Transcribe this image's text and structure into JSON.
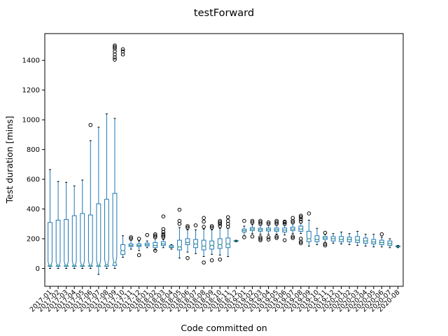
{
  "chart_data": {
    "type": "box",
    "title": "testForward",
    "xlabel": "Code committed on",
    "ylabel": "Test duration [mins]",
    "ylim": [
      -120,
      1580
    ],
    "yticks": [
      0,
      200,
      400,
      600,
      800,
      1000,
      1200,
      1400
    ],
    "grid": false,
    "notched": true,
    "colors": {
      "box": "#1f77b4",
      "median": "#2ca02c",
      "flier": "#000000",
      "axes": "#000000"
    },
    "boxes": [
      {
        "label": "2017-01",
        "whislo": 0,
        "q1": 15,
        "med": 22,
        "q3": 310,
        "whishi": 665,
        "fliers": []
      },
      {
        "label": "2017-02",
        "whislo": 0,
        "q1": 15,
        "med": 22,
        "q3": 325,
        "whishi": 585,
        "fliers": []
      },
      {
        "label": "2017-03",
        "whislo": 0,
        "q1": 15,
        "med": 22,
        "q3": 330,
        "whishi": 580,
        "fliers": []
      },
      {
        "label": "2017-04",
        "whislo": 0,
        "q1": 15,
        "med": 22,
        "q3": 355,
        "whishi": 555,
        "fliers": []
      },
      {
        "label": "2017-05",
        "whislo": 0,
        "q1": 15,
        "med": 22,
        "q3": 370,
        "whishi": 595,
        "fliers": []
      },
      {
        "label": "2017-06",
        "whislo": 0,
        "q1": 15,
        "med": 22,
        "q3": 360,
        "whishi": 860,
        "fliers": [
          965
        ]
      },
      {
        "label": "2017-07",
        "whislo": -40,
        "q1": 15,
        "med": 22,
        "q3": 435,
        "whishi": 950,
        "fliers": []
      },
      {
        "label": "2017-08",
        "whislo": 0,
        "q1": 15,
        "med": 25,
        "q3": 465,
        "whishi": 1040,
        "fliers": []
      },
      {
        "label": "2017-09",
        "whislo": 0,
        "q1": 20,
        "med": 40,
        "q3": 505,
        "whishi": 1010,
        "fliers": [
          1405,
          1420,
          1440,
          1460,
          1480,
          1490,
          1500
        ]
      },
      {
        "label": "2017-10",
        "whislo": 75,
        "q1": 95,
        "med": 120,
        "q3": 160,
        "whishi": 220,
        "fliers": [
          1440,
          1460,
          1475
        ]
      },
      {
        "label": "2017-11",
        "whislo": 130,
        "q1": 148,
        "med": 155,
        "q3": 165,
        "whishi": 190,
        "fliers": [
          200,
          210
        ]
      },
      {
        "label": "2017-12",
        "whislo": 120,
        "q1": 148,
        "med": 155,
        "q3": 165,
        "whishi": 185,
        "fliers": [
          90,
          200
        ]
      },
      {
        "label": "2018-01",
        "whislo": 140,
        "q1": 152,
        "med": 160,
        "q3": 170,
        "whishi": 185,
        "fliers": [
          225
        ]
      },
      {
        "label": "2018-02",
        "whislo": 125,
        "q1": 140,
        "med": 155,
        "q3": 175,
        "whishi": 200,
        "fliers": [
          120,
          210,
          220,
          230
        ]
      },
      {
        "label": "2018-03",
        "whislo": 140,
        "q1": 155,
        "med": 165,
        "q3": 180,
        "whishi": 195,
        "fliers": [
          210,
          220,
          230,
          245,
          265,
          350
        ]
      },
      {
        "label": "2018-04",
        "whislo": 130,
        "q1": 140,
        "med": 145,
        "q3": 155,
        "whishi": 160,
        "fliers": []
      },
      {
        "label": "2018-05",
        "whislo": 70,
        "q1": 125,
        "med": 145,
        "q3": 190,
        "whishi": 275,
        "fliers": [
          300,
          320,
          395
        ]
      },
      {
        "label": "2018-06",
        "whislo": 110,
        "q1": 160,
        "med": 175,
        "q3": 200,
        "whishi": 260,
        "fliers": [
          70,
          275,
          285
        ]
      },
      {
        "label": "2018-07",
        "whislo": 100,
        "q1": 140,
        "med": 165,
        "q3": 195,
        "whishi": 260,
        "fliers": [
          290
        ]
      },
      {
        "label": "2018-08",
        "whislo": 80,
        "q1": 125,
        "med": 150,
        "q3": 190,
        "whishi": 265,
        "fliers": [
          40,
          280,
          315,
          340
        ]
      },
      {
        "label": "2018-09",
        "whislo": 95,
        "q1": 130,
        "med": 155,
        "q3": 185,
        "whishi": 260,
        "fliers": [
          55,
          275,
          285
        ]
      },
      {
        "label": "2018-10",
        "whislo": 90,
        "q1": 135,
        "med": 160,
        "q3": 200,
        "whishi": 270,
        "fliers": [
          60,
          285,
          300,
          310,
          320
        ]
      },
      {
        "label": "2018-11",
        "whislo": 80,
        "q1": 140,
        "med": 165,
        "q3": 205,
        "whishi": 270,
        "fliers": [
          280,
          300,
          320,
          345
        ]
      },
      {
        "label": "2018-12",
        "whislo": 180,
        "q1": 182,
        "med": 185,
        "q3": 188,
        "whishi": 190,
        "fliers": []
      },
      {
        "label": "2019-01",
        "whislo": 220,
        "q1": 245,
        "med": 255,
        "q3": 265,
        "whishi": 285,
        "fliers": [
          210,
          320
        ]
      },
      {
        "label": "2019-02",
        "whislo": 235,
        "q1": 255,
        "med": 265,
        "q3": 275,
        "whishi": 295,
        "fliers": [
          215,
          310,
          320
        ]
      },
      {
        "label": "2019-03",
        "whislo": 230,
        "q1": 250,
        "med": 260,
        "q3": 270,
        "whishi": 290,
        "fliers": [
          190,
          200,
          210,
          300,
          310,
          320
        ]
      },
      {
        "label": "2019-04",
        "whislo": 230,
        "q1": 252,
        "med": 262,
        "q3": 272,
        "whishi": 290,
        "fliers": [
          195,
          210,
          300,
          310
        ]
      },
      {
        "label": "2019-05",
        "whislo": 230,
        "q1": 250,
        "med": 260,
        "q3": 272,
        "whishi": 290,
        "fliers": [
          205,
          215,
          300,
          310,
          320
        ]
      },
      {
        "label": "2019-06",
        "whislo": 225,
        "q1": 245,
        "med": 258,
        "q3": 272,
        "whishi": 290,
        "fliers": [
          190,
          300,
          310,
          315
        ]
      },
      {
        "label": "2019-07",
        "whislo": 235,
        "q1": 255,
        "med": 265,
        "q3": 278,
        "whishi": 300,
        "fliers": [
          205,
          215,
          310,
          320,
          340
        ]
      },
      {
        "label": "2019-08",
        "whislo": 235,
        "q1": 250,
        "med": 265,
        "q3": 285,
        "whishi": 305,
        "fliers": [
          170,
          180,
          200,
          315,
          330,
          345,
          355
        ]
      },
      {
        "label": "2019-09",
        "whislo": 150,
        "q1": 180,
        "med": 200,
        "q3": 250,
        "whishi": 325,
        "fliers": [
          370
        ]
      },
      {
        "label": "2019-10",
        "whislo": 160,
        "q1": 180,
        "med": 195,
        "q3": 220,
        "whishi": 270,
        "fliers": []
      },
      {
        "label": "2019-11",
        "whislo": 175,
        "q1": 195,
        "med": 205,
        "q3": 215,
        "whishi": 230,
        "fliers": [
          155,
          165,
          240
        ]
      },
      {
        "label": "2019-12",
        "whislo": 170,
        "q1": 185,
        "med": 200,
        "q3": 215,
        "whishi": 235,
        "fliers": []
      },
      {
        "label": "2020-01",
        "whislo": 165,
        "q1": 180,
        "med": 195,
        "q3": 215,
        "whishi": 245,
        "fliers": []
      },
      {
        "label": "2020-02",
        "whislo": 160,
        "q1": 180,
        "med": 195,
        "q3": 210,
        "whishi": 235,
        "fliers": []
      },
      {
        "label": "2020-03",
        "whislo": 155,
        "q1": 175,
        "med": 190,
        "q3": 215,
        "whishi": 250,
        "fliers": []
      },
      {
        "label": "2020-04",
        "whislo": 150,
        "q1": 170,
        "med": 185,
        "q3": 205,
        "whishi": 230,
        "fliers": []
      },
      {
        "label": "2020-05",
        "whislo": 145,
        "q1": 165,
        "med": 178,
        "q3": 195,
        "whishi": 230,
        "fliers": []
      },
      {
        "label": "2020-06",
        "whislo": 145,
        "q1": 160,
        "med": 175,
        "q3": 190,
        "whishi": 210,
        "fliers": [
          230
        ]
      },
      {
        "label": "2020-07",
        "whislo": 140,
        "q1": 155,
        "med": 168,
        "q3": 185,
        "whishi": 200,
        "fliers": []
      },
      {
        "label": "2020-08",
        "whislo": 140,
        "q1": 145,
        "med": 148,
        "q3": 152,
        "whishi": 155,
        "fliers": []
      }
    ]
  }
}
